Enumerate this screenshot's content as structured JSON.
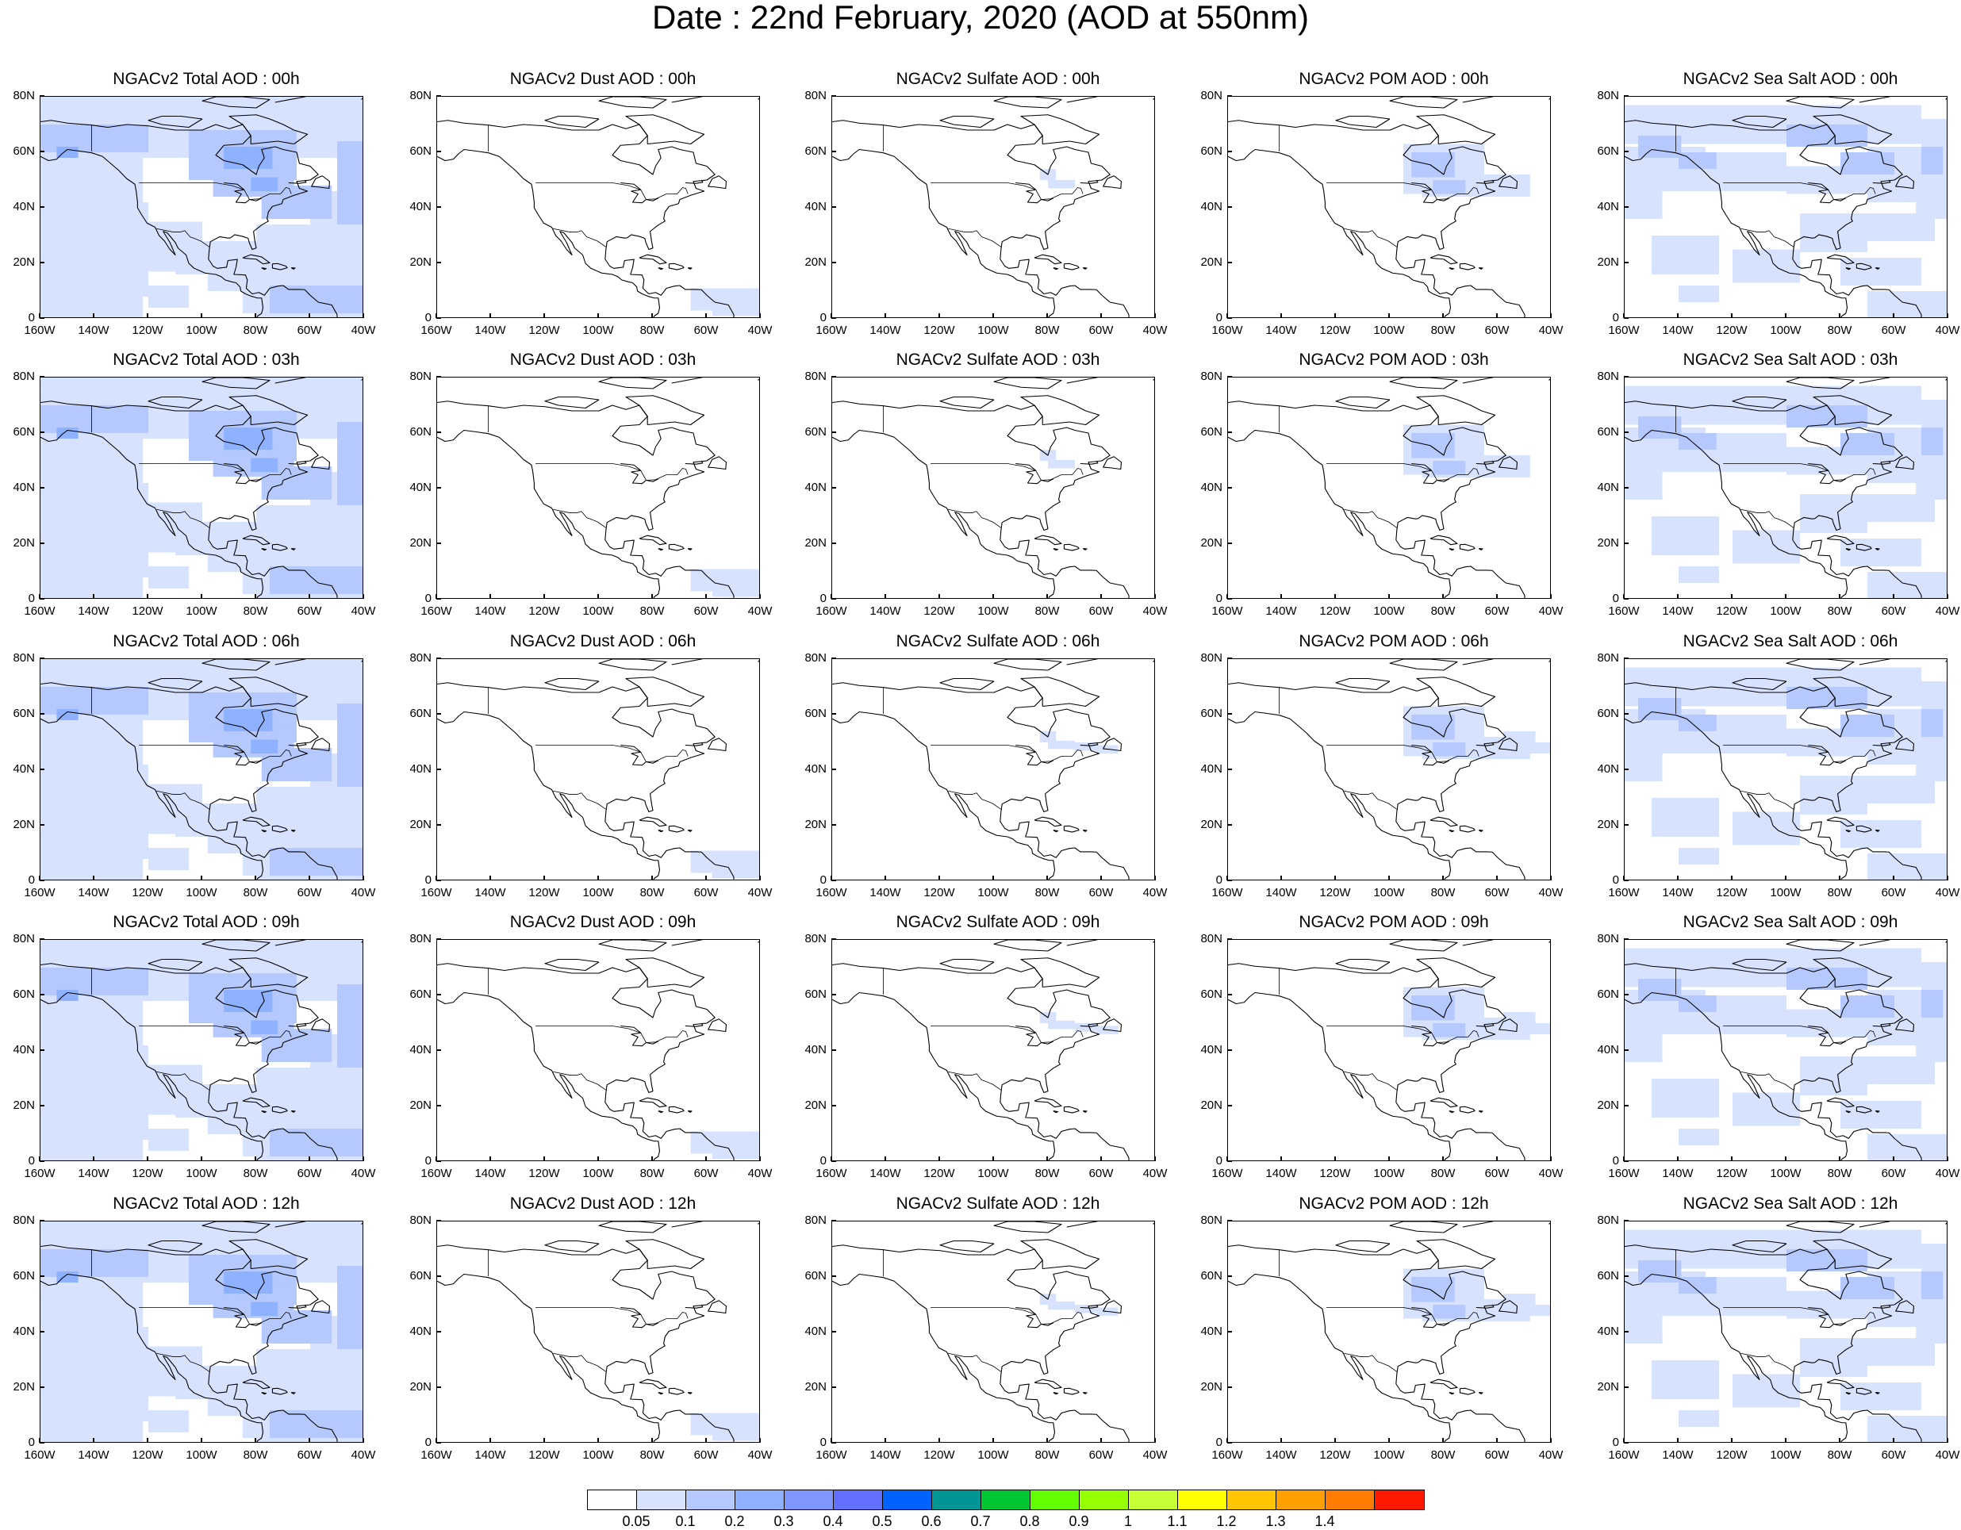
{
  "figure": {
    "title": "Date : 22nd February, 2020 (AOD at 550nm)"
  },
  "panels": [
    [
      "NGACv2 Total AOD : 00h",
      "NGACv2 Dust AOD : 00h",
      "NGACv2 Sulfate AOD : 00h",
      "NGACv2 POM AOD : 00h",
      "NGACv2 Sea Salt AOD : 00h"
    ],
    [
      "NGACv2 Total AOD : 03h",
      "NGACv2 Dust AOD : 03h",
      "NGACv2 Sulfate AOD : 03h",
      "NGACv2 POM AOD : 03h",
      "NGACv2 Sea Salt AOD : 03h"
    ],
    [
      "NGACv2 Total AOD : 06h",
      "NGACv2 Dust AOD : 06h",
      "NGACv2 Sulfate AOD : 06h",
      "NGACv2 POM AOD : 06h",
      "NGACv2 Sea Salt AOD : 06h"
    ],
    [
      "NGACv2 Total AOD : 09h",
      "NGACv2 Dust AOD : 09h",
      "NGACv2 Sulfate AOD : 09h",
      "NGACv2 POM AOD : 09h",
      "NGACv2 Sea Salt  AOD : 09h"
    ],
    [
      "NGACv2 Total AOD  : 12h",
      "NGACv2 Dust AOD : 12h",
      "NGACv2 Sulfate AOD : 12h",
      "NGACv2 POM  AOD : 12h",
      "NGACv2 Sea Salt  AOD : 12h"
    ]
  ],
  "axes": {
    "lat_ticks": [
      "80N",
      "60N",
      "40N",
      "20N",
      "0"
    ],
    "lon_ticks": [
      "160W",
      "140W",
      "120W",
      "100W",
      "80W",
      "60W",
      "40W"
    ]
  },
  "colorbar": {
    "colors": [
      "#ffffff",
      "#d6e2ff",
      "#b5c9ff",
      "#8eb2ff",
      "#7f96ff",
      "#6370ff",
      "#0063ff",
      "#009696",
      "#00c633",
      "#63ff00",
      "#96ff00",
      "#c6ff33",
      "#ffff00",
      "#ffc600",
      "#ffa000",
      "#ff7c00",
      "#ff1900"
    ],
    "labels": [
      "0.05",
      "0.1",
      "0.2",
      "0.3",
      "0.4",
      "0.5",
      "0.6",
      "0.7",
      "0.8",
      "0.9",
      "1",
      "1.1",
      "1.2",
      "1.3",
      "1.4"
    ]
  }
}
